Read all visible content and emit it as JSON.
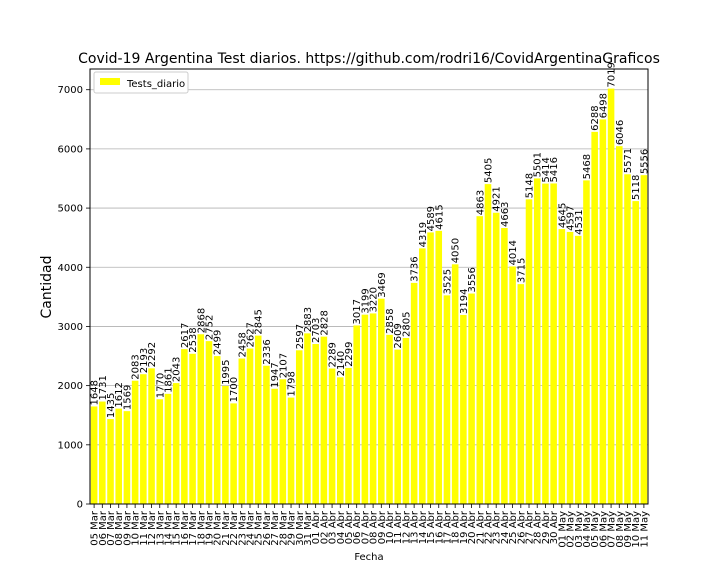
{
  "chart_data": {
    "type": "bar",
    "title": "Covid-19 Argentina Test diarios. https://github.com/rodri16/CovidArgentinaGraficos",
    "xlabel": "Fecha",
    "ylabel": "Cantidad",
    "ylim": [
      0,
      7350
    ],
    "yticks": [
      0,
      1000,
      2000,
      3000,
      4000,
      5000,
      6000,
      7000
    ],
    "grid": true,
    "legend_position": "top-left",
    "bar_color": "#ffff00",
    "series": [
      {
        "name": "Tests_diario"
      }
    ],
    "categories": [
      "05 Mar",
      "06 Mar",
      "07 Mar",
      "08 Mar",
      "09 Mar",
      "10 Mar",
      "11 Mar",
      "12 Mar",
      "13 Mar",
      "14 Mar",
      "15 Mar",
      "16 Mar",
      "17 Mar",
      "18 Mar",
      "19 Mar",
      "20 Mar",
      "21 Mar",
      "22 Mar",
      "23 Mar",
      "24 Mar",
      "25 Mar",
      "26 Mar",
      "27 Mar",
      "28 Mar",
      "29 Mar",
      "30 Mar",
      "31 Mar",
      "01 Abr",
      "02 Abr",
      "03 Abr",
      "04 Abr",
      "05 Abr",
      "06 Abr",
      "07 Abr",
      "08 Abr",
      "09 Abr",
      "10 Abr",
      "11 Abr",
      "12 Abr",
      "13 Abr",
      "14 Abr",
      "15 Abr",
      "16 Abr",
      "17 Abr",
      "18 Abr",
      "19 Abr",
      "20 Abr",
      "21 Abr",
      "22 Abr",
      "23 Abr",
      "24 Abr",
      "25 Abr",
      "26 Abr",
      "27 Abr",
      "28 Abr",
      "29 Abr",
      "30 Abr",
      "01 May",
      "02 May",
      "03 May",
      "04 May",
      "05 May",
      "06 May",
      "07 May",
      "08 May",
      "09 May",
      "10 May",
      "11 May"
    ],
    "values": [
      1648,
      1731,
      1435,
      1612,
      1569,
      2083,
      2193,
      2292,
      1770,
      1861,
      2043,
      2617,
      2538,
      2868,
      2752,
      2499,
      1995,
      1700,
      2458,
      2627,
      2845,
      2336,
      1947,
      2107,
      1798,
      2597,
      2883,
      2703,
      2828,
      2289,
      2140,
      2299,
      3017,
      3199,
      3220,
      3469,
      2858,
      2609,
      2805,
      3736,
      4319,
      4589,
      4615,
      3525,
      4050,
      3194,
      3556,
      4863,
      5405,
      4921,
      4663,
      4014,
      3715,
      5148,
      5501,
      5414,
      5416,
      4645,
      4597,
      4531,
      5468,
      6288,
      6498,
      7019,
      6046,
      5571,
      5118,
      5556
    ]
  }
}
